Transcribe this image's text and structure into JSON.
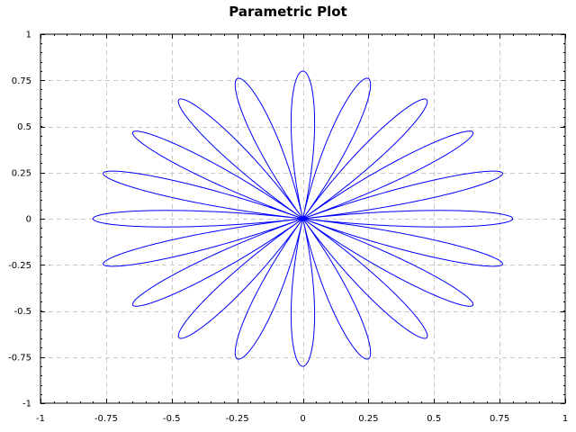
{
  "chart_data": {
    "type": "line",
    "title": "Parametric Plot",
    "xlabel": "",
    "ylabel": "",
    "xlim": [
      -1,
      1
    ],
    "ylim": [
      -1,
      1
    ],
    "grid": true,
    "grid_style": "dashed",
    "x_ticks": [
      -1,
      -0.75,
      -0.5,
      -0.25,
      0,
      0.25,
      0.5,
      0.75,
      1
    ],
    "x_tick_labels": [
      "-1",
      "-0.75",
      "-0.5",
      "-0.25",
      "0",
      "0.25",
      "0.5",
      "0.75",
      "1"
    ],
    "y_ticks": [
      1,
      0.75,
      0.5,
      0.25,
      0,
      -0.25,
      -0.5,
      -0.75,
      -1
    ],
    "y_tick_labels": [
      "1",
      "0.75",
      "0.5",
      "0.25",
      "0",
      "-0.25",
      "-0.5",
      "-0.75",
      "-1"
    ],
    "series": [
      {
        "color": "#0000ff",
        "curve": "rose",
        "petals": 20,
        "max_radius": 0.8
      }
    ]
  }
}
